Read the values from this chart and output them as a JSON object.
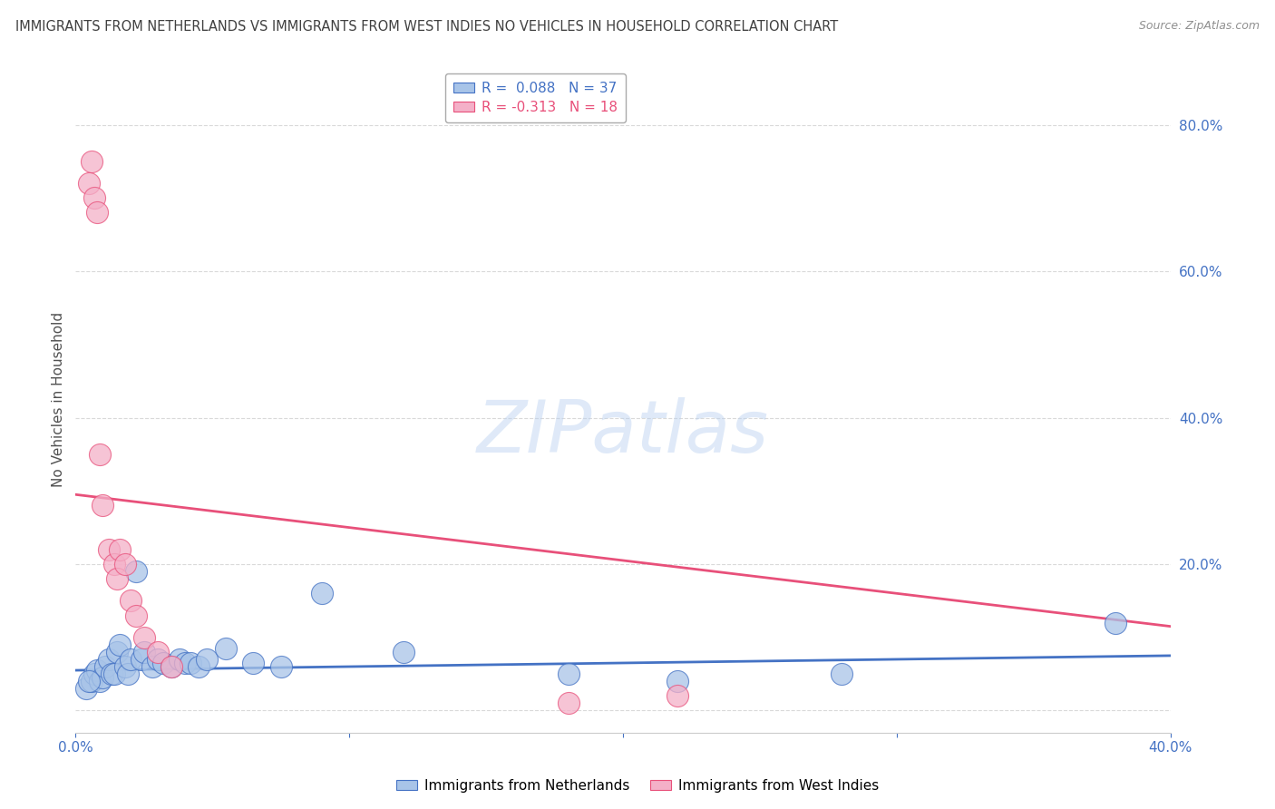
{
  "title": "IMMIGRANTS FROM NETHERLANDS VS IMMIGRANTS FROM WEST INDIES NO VEHICLES IN HOUSEHOLD CORRELATION CHART",
  "source": "Source: ZipAtlas.com",
  "ylabel": "No Vehicles in Household",
  "xlim": [
    0,
    0.4
  ],
  "ylim": [
    -0.03,
    0.88
  ],
  "r_blue": 0.088,
  "n_blue": 37,
  "r_pink": -0.313,
  "n_pink": 18,
  "legend_label_blue": "Immigrants from Netherlands",
  "legend_label_pink": "Immigrants from West Indies",
  "blue_color": "#a8c4e8",
  "pink_color": "#f4b0c8",
  "blue_line_color": "#4472c4",
  "pink_line_color": "#e8507a",
  "legend_text_color_blue": "#4472c4",
  "legend_text_color_pink": "#e8507a",
  "background_color": "#ffffff",
  "grid_color": "#d0d0d0",
  "title_color": "#404040",
  "source_color": "#909090",
  "watermark": "ZIPatlas",
  "blue_x": [
    0.004,
    0.006,
    0.007,
    0.008,
    0.009,
    0.01,
    0.011,
    0.012,
    0.013,
    0.014,
    0.015,
    0.016,
    0.018,
    0.019,
    0.02,
    0.022,
    0.024,
    0.025,
    0.028,
    0.03,
    0.032,
    0.035,
    0.038,
    0.04,
    0.042,
    0.045,
    0.048,
    0.055,
    0.065,
    0.075,
    0.09,
    0.12,
    0.18,
    0.22,
    0.28,
    0.38,
    0.005
  ],
  "blue_y": [
    0.03,
    0.04,
    0.05,
    0.055,
    0.04,
    0.045,
    0.06,
    0.07,
    0.05,
    0.05,
    0.08,
    0.09,
    0.06,
    0.05,
    0.07,
    0.19,
    0.07,
    0.08,
    0.06,
    0.07,
    0.065,
    0.06,
    0.07,
    0.065,
    0.065,
    0.06,
    0.07,
    0.085,
    0.065,
    0.06,
    0.16,
    0.08,
    0.05,
    0.04,
    0.05,
    0.12,
    0.04
  ],
  "pink_x": [
    0.005,
    0.007,
    0.008,
    0.009,
    0.01,
    0.012,
    0.014,
    0.015,
    0.016,
    0.018,
    0.02,
    0.022,
    0.025,
    0.03,
    0.035,
    0.18,
    0.22,
    0.006
  ],
  "pink_y": [
    0.72,
    0.7,
    0.68,
    0.35,
    0.28,
    0.22,
    0.2,
    0.18,
    0.22,
    0.2,
    0.15,
    0.13,
    0.1,
    0.08,
    0.06,
    0.01,
    0.02,
    0.75
  ],
  "pink_line_x0": 0.0,
  "pink_line_y0": 0.295,
  "pink_line_x1": 0.4,
  "pink_line_y1": 0.115,
  "blue_line_x0": 0.0,
  "blue_line_y0": 0.055,
  "blue_line_x1": 0.4,
  "blue_line_y1": 0.075
}
